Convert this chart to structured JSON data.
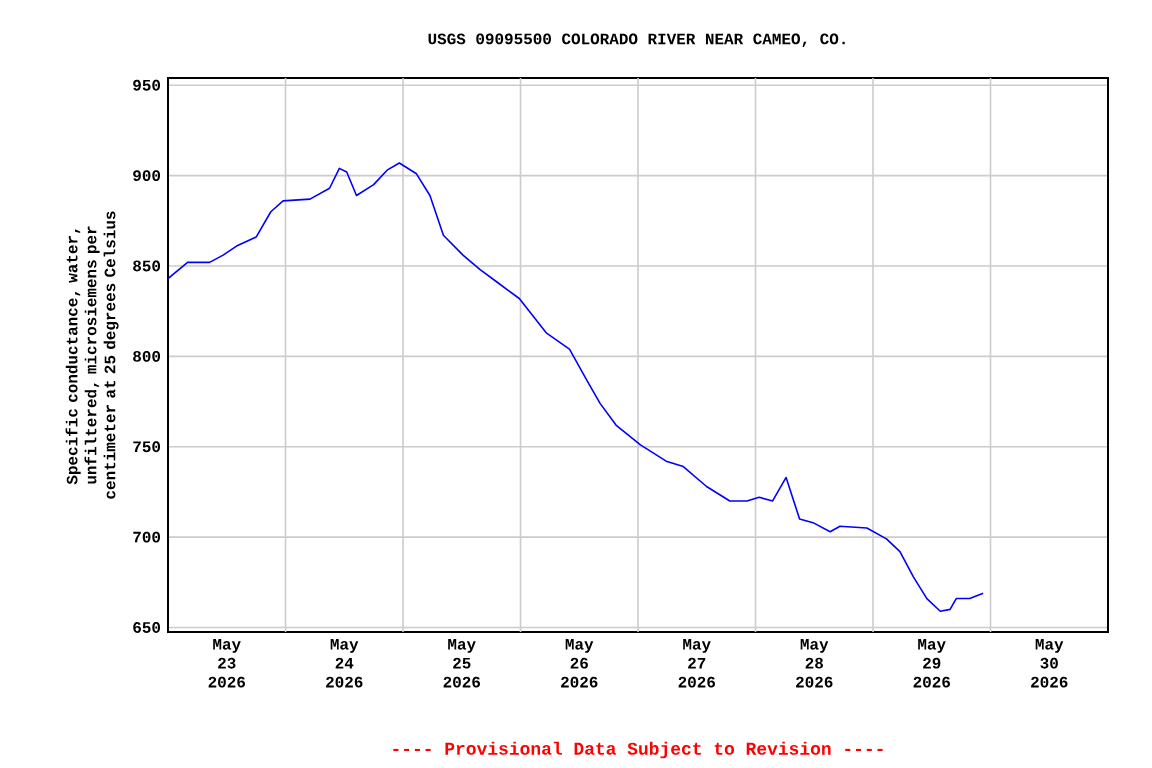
{
  "chart_data": {
    "type": "line",
    "title": "USGS 09095500 COLORADO RIVER NEAR CAMEO, CO.",
    "ylabel": "Specific conductance, water, unfiltered, microsiemens per centimeter at 25 degrees Celsius",
    "annotations": [
      "---- Provisional Data Subject to Revision ----"
    ],
    "x": [
      "2026-05-23T00:00",
      "2026-05-23T04:00",
      "2026-05-23T08:30",
      "2026-05-23T11:15",
      "2026-05-23T14:00",
      "2026-05-23T18:00",
      "2026-05-23T21:00",
      "2026-05-23T23:30",
      "2026-05-24T05:00",
      "2026-05-24T09:00",
      "2026-05-24T11:00",
      "2026-05-24T12:30",
      "2026-05-24T14:30",
      "2026-05-24T18:00",
      "2026-05-24T20:45",
      "2026-05-24T23:15",
      "2026-05-25T02:45",
      "2026-05-25T05:30",
      "2026-05-25T08:15",
      "2026-05-25T12:15",
      "2026-05-25T15:45",
      "2026-05-25T19:15",
      "2026-05-25T23:45",
      "2026-05-26T05:15",
      "2026-05-26T10:00",
      "2026-05-26T13:30",
      "2026-05-26T16:15",
      "2026-05-26T19:30",
      "2026-05-27T00:30",
      "2026-05-27T05:45",
      "2026-05-27T09:15",
      "2026-05-27T14:00",
      "2026-05-27T18:45",
      "2026-05-27T22:15",
      "2026-05-28T00:45",
      "2026-05-28T03:30",
      "2026-05-28T06:15",
      "2026-05-28T09:00",
      "2026-05-28T11:45",
      "2026-05-28T15:15",
      "2026-05-28T17:15",
      "2026-05-28T22:45",
      "2026-05-29T02:45",
      "2026-05-29T05:30",
      "2026-05-29T08:15",
      "2026-05-29T11:00",
      "2026-05-29T13:45",
      "2026-05-29T15:45",
      "2026-05-29T17:00",
      "2026-05-29T19:45",
      "2026-05-29T22:30"
    ],
    "series": [
      {
        "color": "#0000ff",
        "values": [
          843,
          852,
          852,
          856,
          861,
          866,
          880,
          886,
          887,
          893,
          904,
          902,
          889,
          895,
          903,
          907,
          901,
          889,
          867,
          856,
          848,
          841,
          832,
          813,
          804,
          787,
          774,
          762,
          751,
          742,
          739,
          728,
          720,
          720,
          722,
          720,
          733,
          710,
          708,
          703,
          706,
          705,
          699,
          692,
          678,
          666,
          659,
          660,
          666,
          666,
          669
        ]
      }
    ],
    "xlim": [
      "2026-05-23T00:00",
      "2026-05-31T00:00"
    ],
    "xticks": [
      {
        "value": "2026-05-23T12:00",
        "label": "May 23 2026"
      },
      {
        "value": "2026-05-24T12:00",
        "label": "May 24 2026"
      },
      {
        "value": "2026-05-25T12:00",
        "label": "May 25 2026"
      },
      {
        "value": "2026-05-26T12:00",
        "label": "May 26 2026"
      },
      {
        "value": "2026-05-27T12:00",
        "label": "May 27 2026"
      },
      {
        "value": "2026-05-28T12:00",
        "label": "May 28 2026"
      },
      {
        "value": "2026-05-29T12:00",
        "label": "May 29 2026"
      },
      {
        "value": "2026-05-30T12:00",
        "label": "May 30 2026"
      },
      {
        "value": "2026-05-24T00:00",
        "label": null
      },
      {
        "value": "2026-05-25T00:00",
        "label": null
      },
      {
        "value": "2026-05-26T00:00",
        "label": null
      },
      {
        "value": "2026-05-27T00:00",
        "label": null
      },
      {
        "value": "2026-05-28T00:00",
        "label": null
      },
      {
        "value": "2026-05-29T00:00",
        "label": null
      },
      {
        "value": "2026-05-30T00:00",
        "label": null
      }
    ],
    "ylim": [
      647.5,
      954
    ],
    "yticks": [
      650,
      700,
      750,
      800,
      850,
      900,
      950
    ],
    "grid": true
  }
}
